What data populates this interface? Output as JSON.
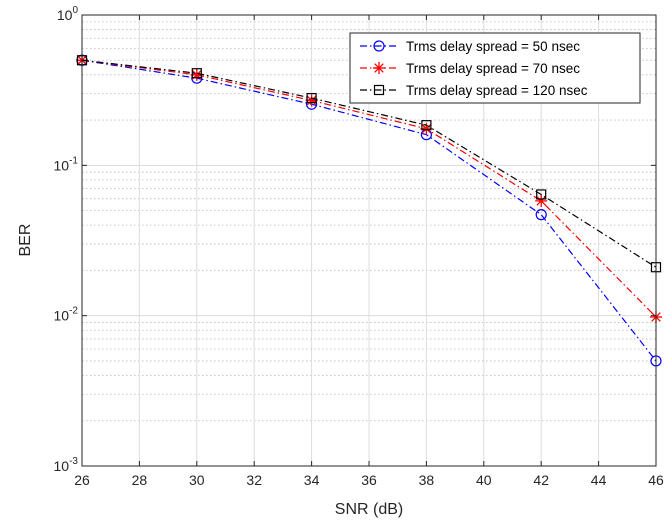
{
  "chart_data": {
    "type": "line",
    "title": "",
    "xlabel": "SNR (dB)",
    "ylabel": "BER",
    "xlim": [
      26,
      46
    ],
    "ylim": [
      0.001,
      1
    ],
    "y_scale": "log",
    "grid": true,
    "minor_grid": true,
    "legend_position": "top-right",
    "x_ticks": [
      26,
      28,
      30,
      32,
      34,
      36,
      38,
      40,
      42,
      44,
      46
    ],
    "x_tick_labels": [
      "26",
      "28",
      "30",
      "32",
      "34",
      "36",
      "38",
      "40",
      "42",
      "44",
      "46"
    ],
    "y_ticks": [
      {
        "value": 1,
        "base": "10",
        "exp": "0"
      },
      {
        "value": 0.1,
        "base": "10",
        "exp": "-1"
      },
      {
        "value": 0.01,
        "base": "10",
        "exp": "-2"
      },
      {
        "value": 0.001,
        "base": "10",
        "exp": "-3"
      }
    ],
    "x": [
      26,
      30,
      34,
      38,
      42,
      46
    ],
    "series": [
      {
        "name": "Trms delay spread = 50 nsec",
        "color": "#0000ff",
        "marker": "circle",
        "line_style": "dash-dot",
        "values": [
          0.5,
          0.38,
          0.255,
          0.16,
          0.047,
          0.005
        ]
      },
      {
        "name": "Trms delay spread = 70 nsec",
        "color": "#ff0000",
        "marker": "asterisk",
        "line_style": "dash-dot",
        "values": [
          0.5,
          0.4,
          0.27,
          0.175,
          0.058,
          0.0098
        ]
      },
      {
        "name": "Trms delay spread = 120 nsec",
        "color": "#000000",
        "marker": "square",
        "line_style": "dash-dot",
        "values": [
          0.5,
          0.41,
          0.28,
          0.185,
          0.064,
          0.021
        ]
      }
    ]
  }
}
